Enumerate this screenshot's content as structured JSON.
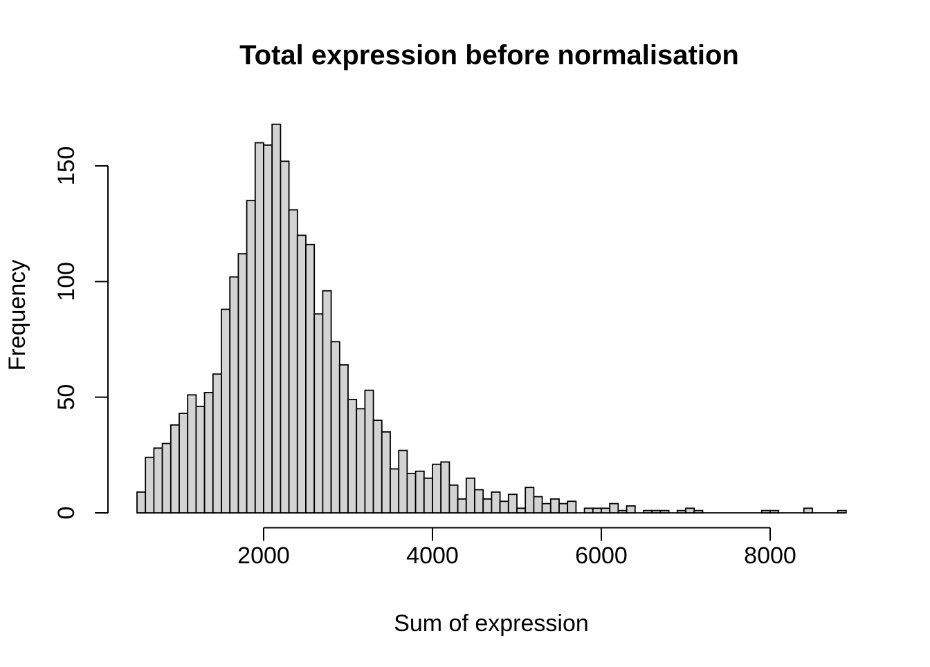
{
  "figure": {
    "background": "#ffffff"
  },
  "chart_data": {
    "type": "bar",
    "subtype": "histogram",
    "title": "Total expression before normalisation",
    "xlabel": "Sum of expression",
    "ylabel": "Frequency",
    "bin_start": 500,
    "bin_width": 100,
    "counts": [
      9,
      24,
      28,
      30,
      38,
      43,
      51,
      46,
      52,
      60,
      88,
      102,
      112,
      135,
      160,
      159,
      168,
      152,
      131,
      120,
      116,
      86,
      96,
      74,
      64,
      49,
      45,
      53,
      40,
      35,
      19,
      27,
      17,
      18,
      15,
      21,
      22,
      12,
      6,
      15,
      10,
      6,
      9,
      5,
      8,
      2,
      11,
      7,
      4,
      6,
      4,
      5,
      0,
      2,
      2,
      2,
      4,
      1,
      3,
      0,
      1,
      1,
      1,
      0,
      1,
      2,
      1,
      0,
      0,
      0,
      0,
      0,
      0,
      0,
      1,
      1,
      0,
      0,
      0,
      2,
      0,
      0,
      0,
      1
    ],
    "x_ticks": [
      2000,
      4000,
      6000,
      8000
    ],
    "y_ticks": [
      0,
      50,
      100,
      150
    ],
    "xlim": [
      500,
      8900
    ],
    "ylim": [
      0,
      168
    ],
    "grid": false,
    "legend": null,
    "bar_fill": "#d3d3d3",
    "bar_border": "#000000",
    "axis_color": "#000000",
    "text_color": "#000000"
  }
}
